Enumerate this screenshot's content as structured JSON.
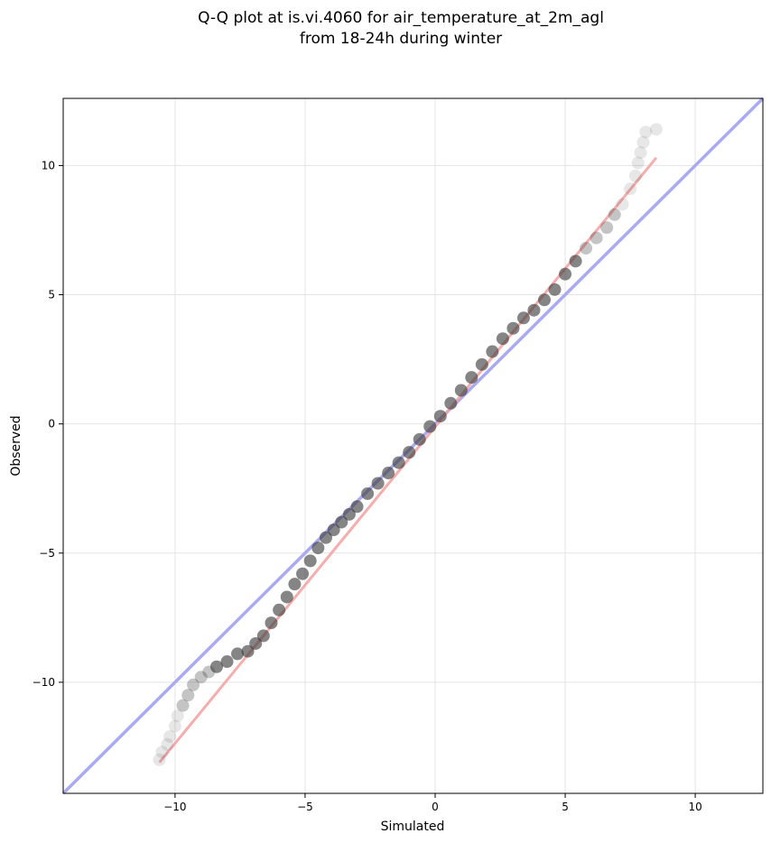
{
  "chart_data": {
    "type": "scatter",
    "title_line1": "Q-Q plot at is.vi.4060 for air_temperature_at_2m_agl",
    "title_line2": "from 18-24h during winter",
    "xlabel": "Simulated",
    "ylabel": "Observed",
    "xlim": [
      -14.3,
      12.6
    ],
    "ylim": [
      -14.3,
      12.6
    ],
    "xticks": [
      -10,
      -5,
      0,
      5,
      10
    ],
    "yticks": [
      -10,
      -5,
      0,
      5,
      10
    ],
    "grid": true,
    "colors": {
      "points": "#3a3a3a",
      "identity_line": "#aaaaf2",
      "fit_line": "#f4a4a4"
    },
    "identity_line": {
      "x": [
        -14.3,
        12.6
      ],
      "y": [
        -14.3,
        12.6
      ]
    },
    "fit_line": {
      "x": [
        -10.6,
        8.5
      ],
      "y": [
        -13.1,
        10.3
      ]
    },
    "quantiles": {
      "x": [
        -10.6,
        -10.5,
        -10.3,
        -10.2,
        -10.0,
        -9.9,
        -9.7,
        -9.5,
        -9.3,
        -9.0,
        -8.7,
        -8.4,
        -8.0,
        -7.6,
        -7.2,
        -6.9,
        -6.6,
        -6.3,
        -6.0,
        -5.7,
        -5.4,
        -5.1,
        -4.8,
        -4.5,
        -4.2,
        -3.9,
        -3.6,
        -3.3,
        -3.0,
        -2.6,
        -2.2,
        -1.8,
        -1.4,
        -1.0,
        -0.6,
        -0.2,
        0.2,
        0.6,
        1.0,
        1.4,
        1.8,
        2.2,
        2.6,
        3.0,
        3.4,
        3.8,
        4.2,
        4.6,
        5.0,
        5.4,
        5.8,
        6.2,
        6.6,
        6.9,
        7.2,
        7.5,
        7.7,
        7.8,
        7.9,
        8.0,
        8.1,
        8.5
      ],
      "y": [
        -13.0,
        -12.7,
        -12.4,
        -12.1,
        -11.7,
        -11.3,
        -10.9,
        -10.5,
        -10.1,
        -9.8,
        -9.6,
        -9.4,
        -9.2,
        -8.9,
        -8.8,
        -8.5,
        -8.2,
        -7.7,
        -7.2,
        -6.7,
        -6.2,
        -5.8,
        -5.3,
        -4.8,
        -4.4,
        -4.1,
        -3.8,
        -3.5,
        -3.2,
        -2.7,
        -2.3,
        -1.9,
        -1.5,
        -1.1,
        -0.6,
        -0.1,
        0.3,
        0.8,
        1.3,
        1.8,
        2.3,
        2.8,
        3.3,
        3.7,
        4.1,
        4.4,
        4.8,
        5.2,
        5.8,
        6.3,
        6.8,
        7.2,
        7.6,
        8.1,
        8.5,
        9.1,
        9.6,
        10.1,
        10.5,
        10.9,
        11.3,
        11.4
      ]
    }
  }
}
